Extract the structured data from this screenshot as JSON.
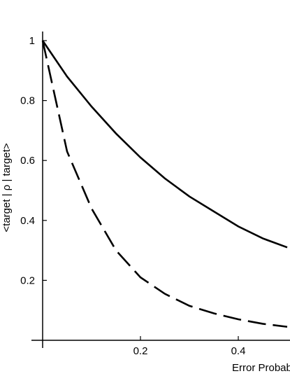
{
  "chart_data": {
    "type": "line",
    "x_label": "Error Probability",
    "y_label": "<target | ρ | target>",
    "x": [
      0,
      0.05,
      0.1,
      0.15,
      0.2,
      0.25,
      0.3,
      0.35,
      0.4,
      0.45,
      0.5
    ],
    "series": [
      {
        "color": "#000000",
        "style": "solid",
        "values": [
          1,
          0.88,
          0.78,
          0.69,
          0.61,
          0.54,
          0.48,
          0.43,
          0.38,
          0.34,
          0.31
        ]
      },
      {
        "color": "#000000",
        "style": "dashed",
        "values": [
          1,
          0.63,
          0.44,
          0.3,
          0.21,
          0.155,
          0.115,
          0.09,
          0.07,
          0.055,
          0.045
        ]
      }
    ],
    "xlim": [
      0,
      0.5
    ],
    "ylim": [
      0,
      1
    ],
    "xticks": [
      0.2,
      0.4
    ],
    "yticks": [
      0.2,
      0.4,
      0.6,
      0.8,
      1
    ],
    "grid": false
  }
}
